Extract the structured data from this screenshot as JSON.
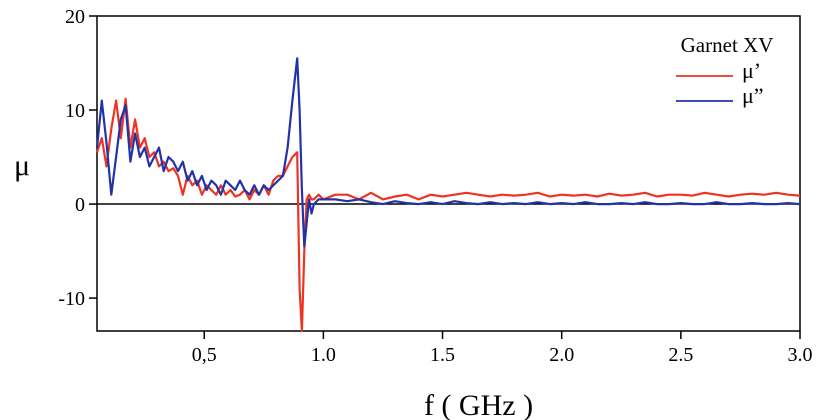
{
  "chart_data": {
    "type": "line",
    "title": "",
    "xlabel": "f ( GHz )",
    "ylabel": "μ",
    "xlim": [
      0.05,
      3.0
    ],
    "ylim": [
      -13.5,
      20
    ],
    "x_ticks": [
      {
        "value": 0.5,
        "label": "0,5"
      },
      {
        "value": 1.0,
        "label": "1.0"
      },
      {
        "value": 1.5,
        "label": "1.5"
      },
      {
        "value": 2.0,
        "label": "2.0"
      },
      {
        "value": 2.5,
        "label": "2.5"
      },
      {
        "value": 3.0,
        "label": "3.0"
      }
    ],
    "y_ticks": [
      {
        "value": 20,
        "label": "20"
      },
      {
        "value": 10,
        "label": "10"
      },
      {
        "value": 0,
        "label": "0"
      },
      {
        "value": -10,
        "label": "-10"
      }
    ],
    "zero_line": true,
    "grid": false,
    "legend": {
      "title": "Garnet XV",
      "position": "top-right"
    },
    "series": [
      {
        "name": "μ’",
        "color": "#ee3322",
        "x": [
          0.05,
          0.07,
          0.09,
          0.11,
          0.13,
          0.15,
          0.17,
          0.19,
          0.21,
          0.23,
          0.25,
          0.27,
          0.29,
          0.31,
          0.33,
          0.35,
          0.37,
          0.39,
          0.41,
          0.43,
          0.45,
          0.47,
          0.49,
          0.51,
          0.53,
          0.55,
          0.57,
          0.59,
          0.61,
          0.63,
          0.65,
          0.67,
          0.69,
          0.71,
          0.73,
          0.75,
          0.77,
          0.79,
          0.81,
          0.83,
          0.85,
          0.87,
          0.89,
          0.9,
          0.91,
          0.92,
          0.93,
          0.94,
          0.95,
          0.96,
          0.98,
          1.0,
          1.05,
          1.1,
          1.15,
          1.2,
          1.25,
          1.3,
          1.35,
          1.4,
          1.45,
          1.5,
          1.55,
          1.6,
          1.65,
          1.7,
          1.75,
          1.8,
          1.85,
          1.9,
          1.95,
          2.0,
          2.05,
          2.1,
          2.15,
          2.2,
          2.25,
          2.3,
          2.35,
          2.4,
          2.45,
          2.5,
          2.55,
          2.6,
          2.65,
          2.7,
          2.75,
          2.8,
          2.85,
          2.9,
          2.95,
          3.0
        ],
        "values": [
          5.5,
          7.0,
          4.0,
          8.0,
          11.0,
          7.0,
          11.2,
          6.0,
          9.0,
          6.0,
          7.0,
          5.0,
          5.5,
          4.0,
          4.5,
          3.5,
          3.8,
          3.0,
          1.0,
          3.0,
          2.0,
          2.5,
          1.0,
          2.0,
          1.5,
          1.0,
          2.0,
          1.0,
          1.5,
          0.8,
          1.0,
          1.5,
          0.5,
          1.5,
          1.0,
          2.0,
          1.0,
          2.5,
          3.0,
          3.0,
          4.0,
          5.0,
          5.5,
          -9.0,
          -13.5,
          -5.0,
          0.5,
          1.0,
          0.5,
          0.5,
          1.0,
          0.5,
          1.0,
          1.0,
          0.5,
          1.2,
          0.5,
          0.8,
          1.0,
          0.5,
          1.0,
          0.8,
          1.0,
          1.2,
          1.0,
          0.8,
          1.0,
          0.9,
          1.0,
          1.2,
          0.8,
          1.0,
          0.9,
          1.0,
          0.8,
          1.1,
          0.9,
          1.0,
          1.2,
          0.8,
          1.0,
          1.0,
          0.9,
          1.2,
          1.0,
          0.8,
          1.0,
          1.1,
          1.0,
          1.2,
          1.0,
          0.9
        ]
      },
      {
        "name": "μ”",
        "color": "#2233aa",
        "x": [
          0.05,
          0.07,
          0.09,
          0.11,
          0.13,
          0.15,
          0.17,
          0.19,
          0.21,
          0.23,
          0.25,
          0.27,
          0.29,
          0.31,
          0.33,
          0.35,
          0.37,
          0.39,
          0.41,
          0.43,
          0.45,
          0.47,
          0.49,
          0.51,
          0.53,
          0.55,
          0.57,
          0.59,
          0.61,
          0.63,
          0.65,
          0.67,
          0.69,
          0.71,
          0.73,
          0.75,
          0.77,
          0.79,
          0.81,
          0.83,
          0.85,
          0.87,
          0.89,
          0.9,
          0.91,
          0.92,
          0.93,
          0.94,
          0.95,
          0.96,
          0.98,
          1.0,
          1.05,
          1.1,
          1.15,
          1.2,
          1.25,
          1.3,
          1.35,
          1.4,
          1.45,
          1.5,
          1.55,
          1.6,
          1.65,
          1.7,
          1.75,
          1.8,
          1.85,
          1.9,
          1.95,
          2.0,
          2.05,
          2.1,
          2.15,
          2.2,
          2.25,
          2.3,
          2.35,
          2.4,
          2.45,
          2.5,
          2.55,
          2.6,
          2.65,
          2.7,
          2.75,
          2.8,
          2.85,
          2.9,
          2.95,
          3.0
        ],
        "values": [
          6.0,
          11.0,
          6.5,
          1.0,
          5.0,
          9.0,
          10.5,
          4.5,
          7.5,
          5.0,
          6.0,
          4.0,
          5.0,
          6.0,
          3.5,
          5.0,
          4.5,
          3.5,
          4.5,
          2.5,
          3.5,
          2.0,
          3.0,
          1.5,
          2.5,
          2.0,
          1.0,
          2.5,
          2.0,
          1.5,
          2.5,
          1.5,
          1.0,
          2.0,
          1.0,
          2.0,
          1.5,
          2.0,
          2.5,
          3.0,
          6.0,
          11.0,
          15.5,
          10.0,
          1.5,
          -4.5,
          -2.0,
          0.5,
          -1.0,
          0.0,
          0.5,
          0.5,
          0.5,
          0.3,
          0.5,
          0.2,
          0.0,
          0.3,
          0.1,
          0.0,
          0.2,
          0.0,
          0.3,
          0.1,
          0.0,
          0.2,
          0.0,
          0.1,
          0.0,
          0.2,
          0.0,
          0.1,
          0.0,
          0.2,
          0.0,
          0.0,
          0.1,
          0.0,
          0.2,
          0.0,
          0.0,
          0.1,
          0.0,
          0.0,
          0.2,
          0.0,
          0.0,
          0.1,
          0.0,
          0.0,
          0.1,
          0.0
        ]
      }
    ]
  }
}
